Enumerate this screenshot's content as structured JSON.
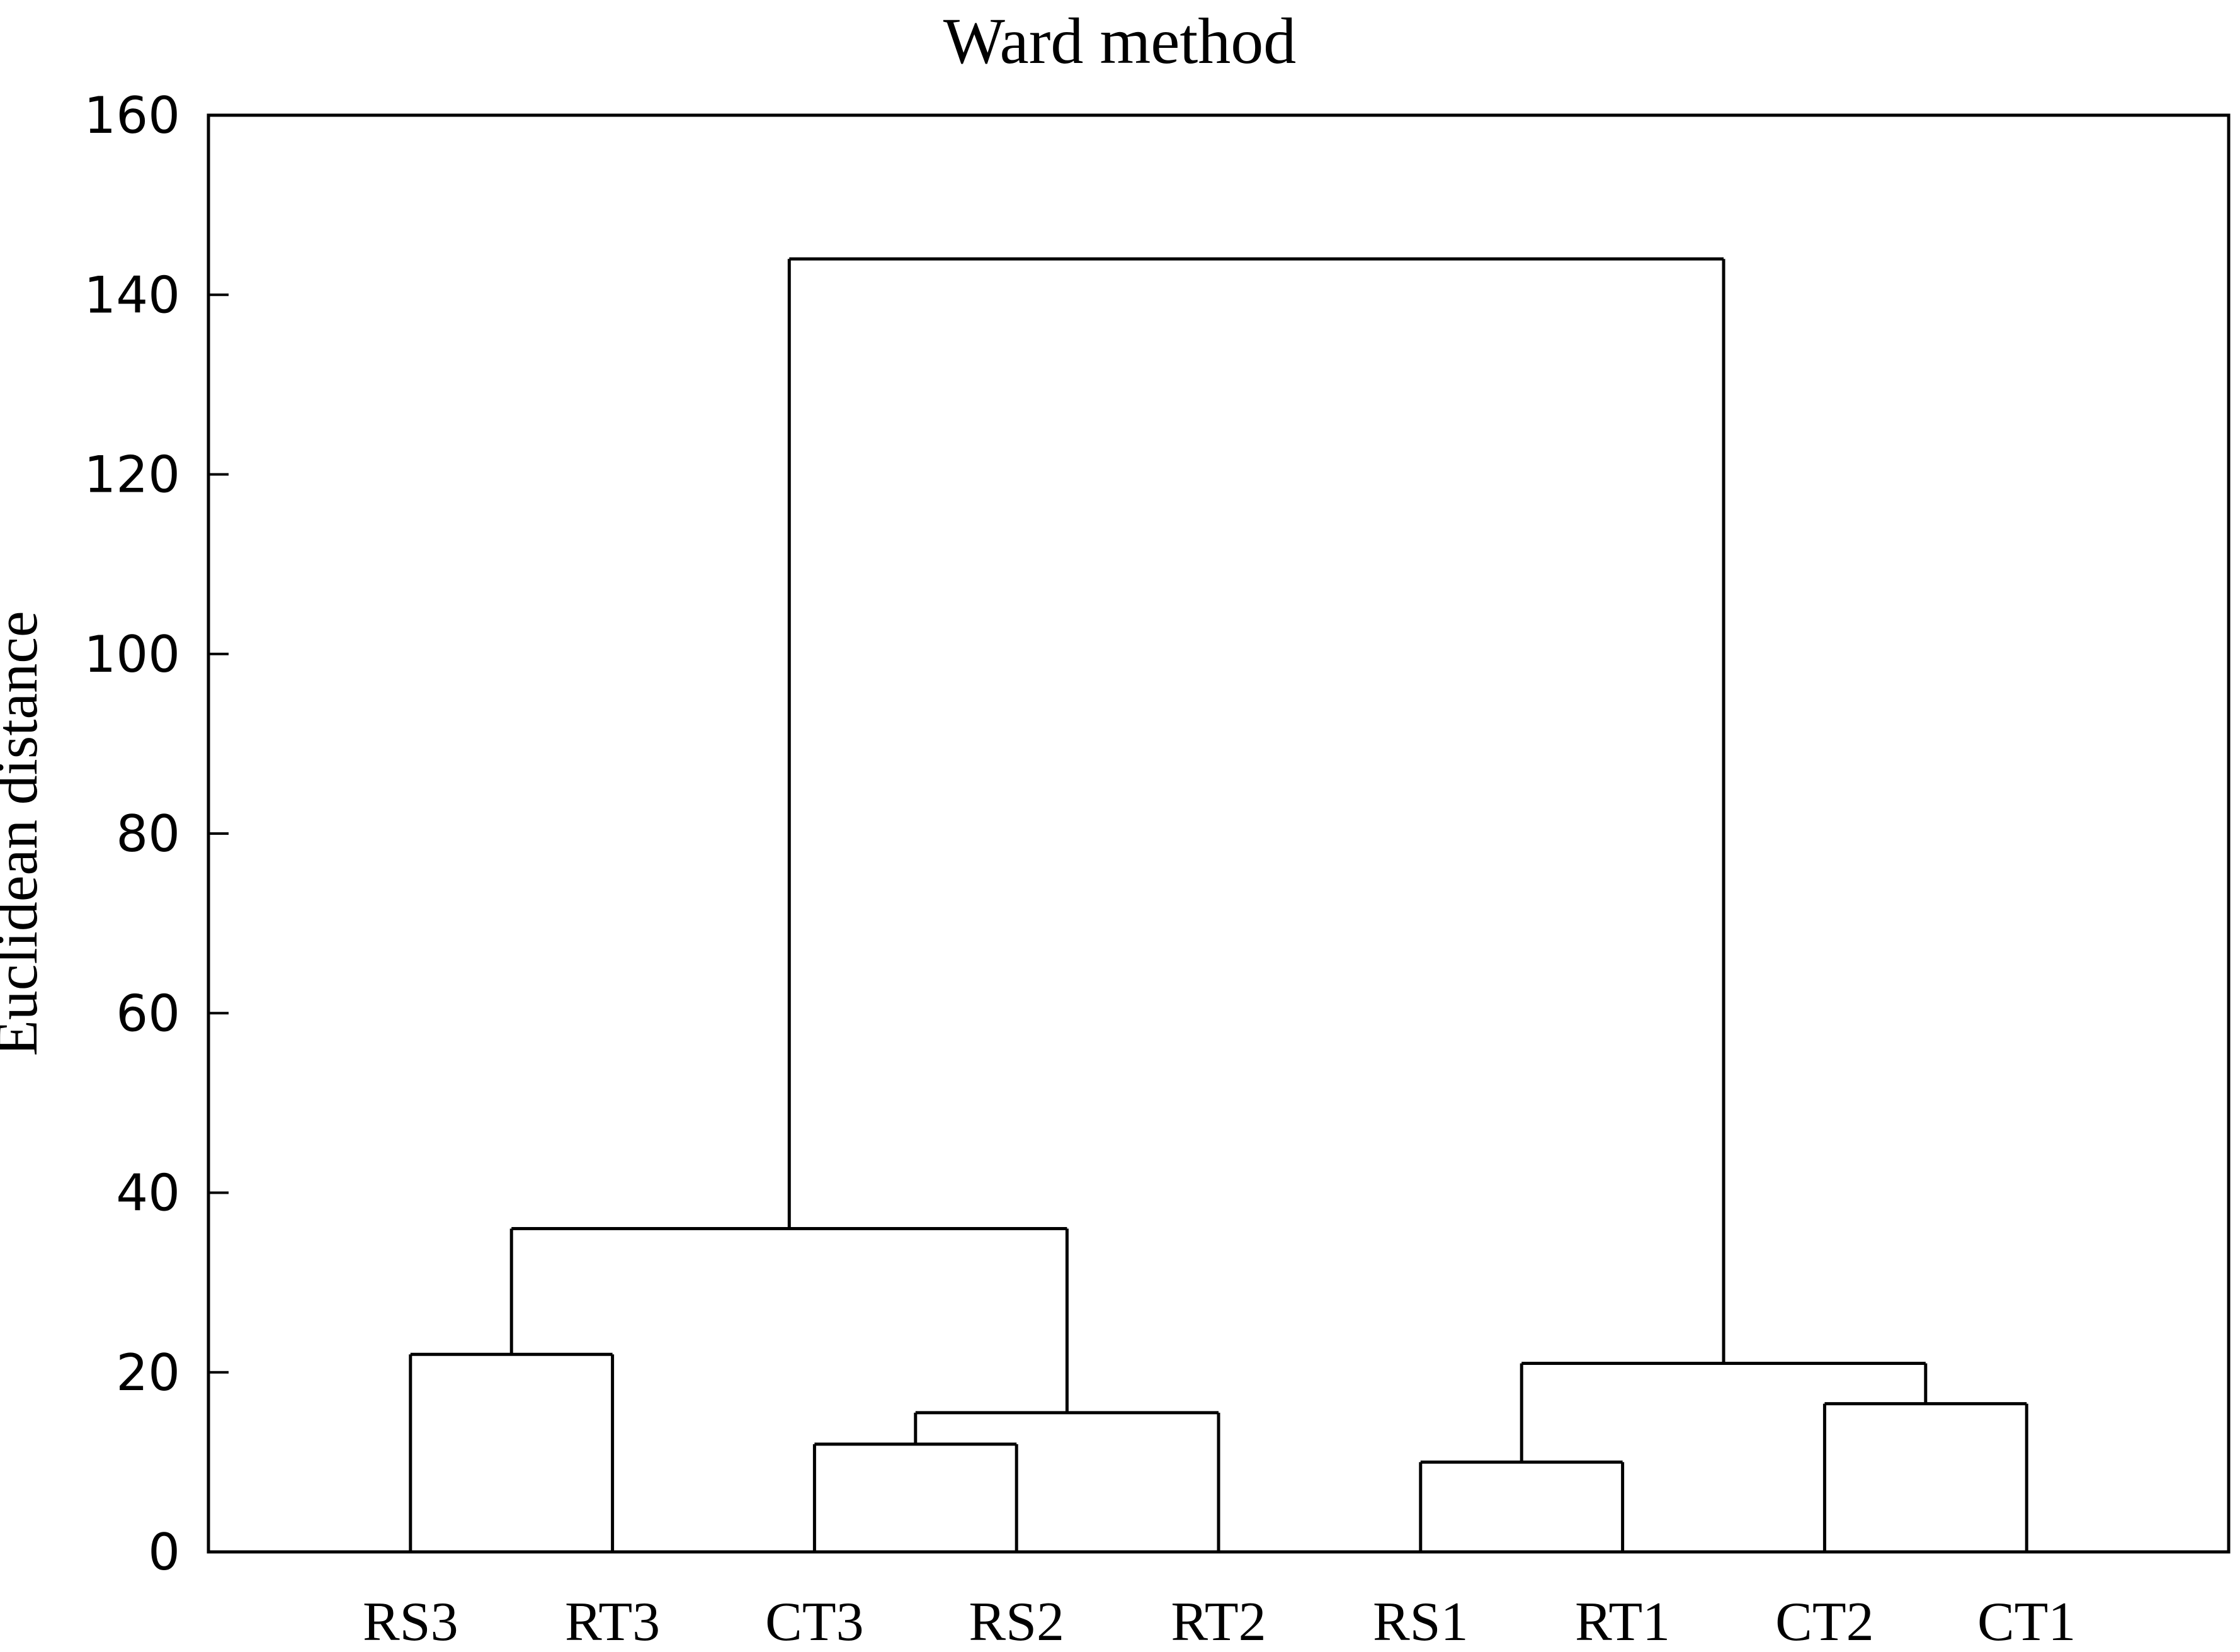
{
  "chart_data": {
    "type": "dendrogram",
    "title": "Ward method",
    "ylabel": "Euclidean distance",
    "xlabel": "",
    "ylim": [
      0,
      160
    ],
    "yticks": [
      0,
      20,
      40,
      60,
      80,
      100,
      120,
      140,
      160
    ],
    "grid": false,
    "legend": "none",
    "line_color": "#000000",
    "text_color": "#000000",
    "background_color": "#ffffff",
    "leaves": [
      "RS3",
      "RT3",
      "CT3",
      "RS2",
      "RT2",
      "RS1",
      "RT1",
      "CT2",
      "CT1"
    ],
    "merges": [
      {
        "members": [
          "RS3",
          "RT3"
        ],
        "height": 22
      },
      {
        "members": [
          "CT3",
          "RS2"
        ],
        "height": 12
      },
      {
        "members": [
          "CT3+RS2",
          "RT2"
        ],
        "height": 15.5
      },
      {
        "members": [
          "RS3+RT3",
          "CT3+RS2+RT2"
        ],
        "height": 36
      },
      {
        "members": [
          "RS1",
          "RT1"
        ],
        "height": 10
      },
      {
        "members": [
          "CT2",
          "CT1"
        ],
        "height": 16.5
      },
      {
        "members": [
          "RS1+RT1",
          "CT2+CT1"
        ],
        "height": 21
      },
      {
        "members": [
          "RS3+RT3+CT3+RS2+RT2",
          "RS1+RT1+CT2+CT1"
        ],
        "height": 144
      }
    ],
    "tree": {
      "height": 144,
      "children": [
        {
          "height": 36,
          "children": [
            {
              "height": 22,
              "children": [
                {
                  "leaf": "RS3"
                },
                {
                  "leaf": "RT3"
                }
              ]
            },
            {
              "height": 15.5,
              "children": [
                {
                  "height": 12,
                  "children": [
                    {
                      "leaf": "CT3"
                    },
                    {
                      "leaf": "RS2"
                    }
                  ]
                },
                {
                  "leaf": "RT2"
                }
              ]
            }
          ]
        },
        {
          "height": 21,
          "children": [
            {
              "height": 10,
              "children": [
                {
                  "leaf": "RS1"
                },
                {
                  "leaf": "RT1"
                }
              ]
            },
            {
              "height": 16.5,
              "children": [
                {
                  "leaf": "CT2"
                },
                {
                  "leaf": "CT1"
                }
              ]
            }
          ]
        }
      ]
    }
  }
}
